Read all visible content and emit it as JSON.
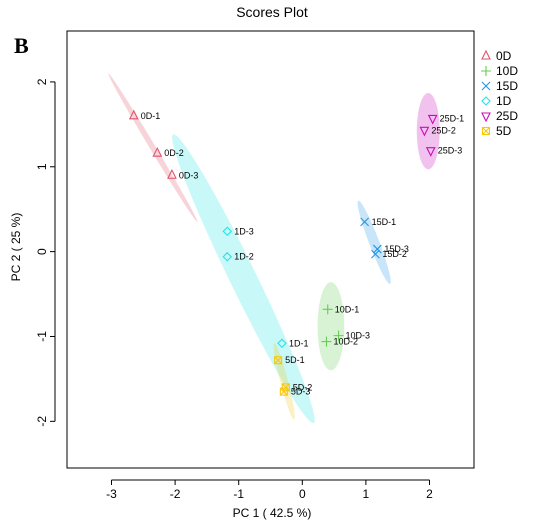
{
  "chart_data": {
    "type": "scatter",
    "title": "Scores Plot",
    "panel_label": "B",
    "xlabel": "PC 1 ( 42.5 %)",
    "ylabel": "PC 2 ( 25 %)",
    "xlim": [
      -3.7,
      2.7
    ],
    "ylim": [
      -2.55,
      2.6
    ],
    "xticks": [
      -3,
      -2,
      -1,
      0,
      1,
      2
    ],
    "yticks": [
      -2,
      -1,
      0,
      1,
      2
    ],
    "grid": false,
    "legend_position": "right",
    "series": [
      {
        "name": "0D",
        "color": "#DF536B",
        "marker": "triangle",
        "points": [
          {
            "label": "0D-1",
            "x": -2.65,
            "y": 1.6
          },
          {
            "label": "0D-2",
            "x": -2.28,
            "y": 1.16
          },
          {
            "label": "0D-3",
            "x": -2.05,
            "y": 0.9
          }
        ],
        "ellipse": {
          "from": [
            -3.05,
            2.1
          ],
          "to": [
            -1.65,
            0.35
          ],
          "width": 0.09
        }
      },
      {
        "name": "10D",
        "color": "#61D04F",
        "marker": "plus",
        "points": [
          {
            "label": "10D-1",
            "x": 0.4,
            "y": -0.68
          },
          {
            "label": "10D-2",
            "x": 0.38,
            "y": -1.06
          },
          {
            "label": "10D-3",
            "x": 0.57,
            "y": -0.99
          }
        ],
        "ellipse": {
          "from": [
            0.45,
            -0.36
          ],
          "to": [
            0.45,
            -1.4
          ],
          "width": 0.42
        }
      },
      {
        "name": "15D",
        "color": "#2297E6",
        "marker": "x",
        "points": [
          {
            "label": "15D-1",
            "x": 0.98,
            "y": 0.35
          },
          {
            "label": "15D-3",
            "x": 1.18,
            "y": 0.03
          },
          {
            "label": "15D-2",
            "x": 1.15,
            "y": -0.03
          }
        ],
        "ellipse": {
          "from": [
            0.88,
            0.6
          ],
          "to": [
            1.38,
            -0.38
          ],
          "width": 0.16
        }
      },
      {
        "name": "1D",
        "color": "#28E2E5",
        "marker": "diamond",
        "points": [
          {
            "label": "1D-3",
            "x": -1.18,
            "y": 0.24
          },
          {
            "label": "1D-2",
            "x": -1.18,
            "y": -0.06
          },
          {
            "label": "1D-1",
            "x": -0.32,
            "y": -1.08
          }
        ],
        "ellipse": {
          "from": [
            -2.03,
            1.38
          ],
          "to": [
            0.18,
            -2.02
          ],
          "width": 0.42
        }
      },
      {
        "name": "25D",
        "color": "#CD0BBC",
        "marker": "triangle-down",
        "points": [
          {
            "label": "25D-1",
            "x": 2.05,
            "y": 1.57
          },
          {
            "label": "25D-2",
            "x": 1.92,
            "y": 1.43
          },
          {
            "label": "25D-3",
            "x": 2.02,
            "y": 1.19
          }
        ],
        "ellipse": {
          "from": [
            1.98,
            1.87
          ],
          "to": [
            1.98,
            0.97
          ],
          "width": 0.36
        }
      },
      {
        "name": "5D",
        "color": "#F5C710",
        "marker": "square-x",
        "points": [
          {
            "label": "5D-1",
            "x": -0.38,
            "y": -1.28
          },
          {
            "label": "5D-2",
            "x": -0.26,
            "y": -1.6
          },
          {
            "label": "5D-3",
            "x": -0.29,
            "y": -1.65
          }
        ],
        "ellipse": {
          "from": [
            -0.44,
            -1.08
          ],
          "to": [
            -0.13,
            -1.98
          ],
          "width": 0.12
        }
      }
    ]
  }
}
